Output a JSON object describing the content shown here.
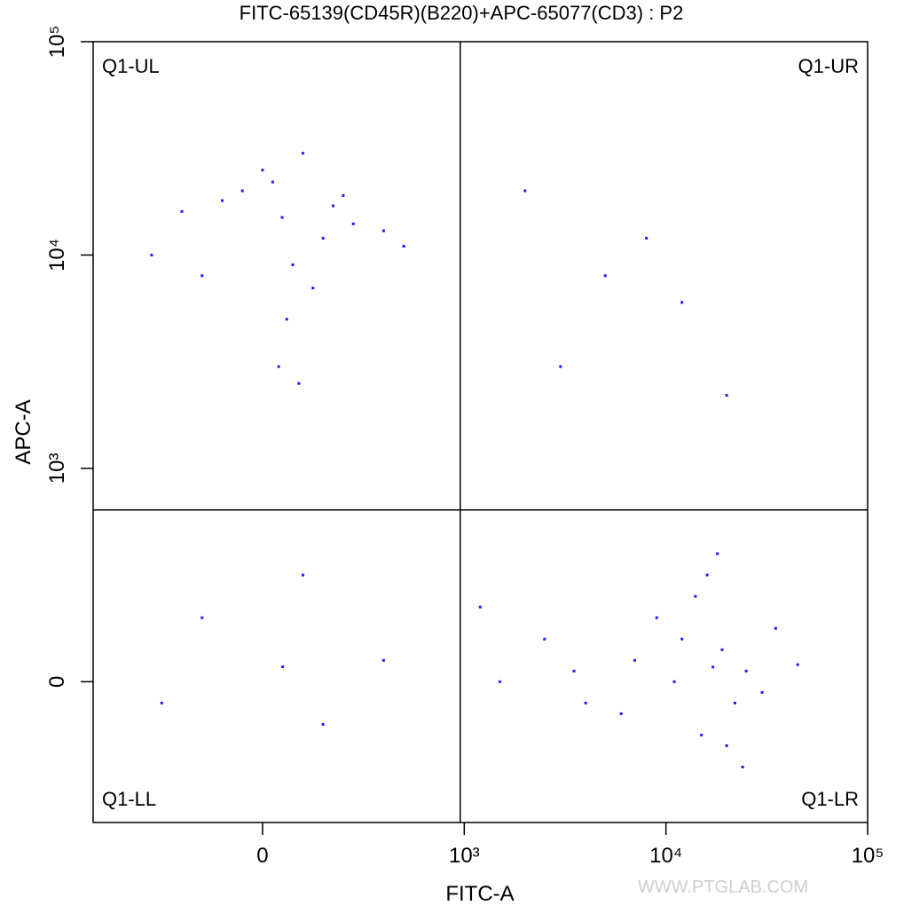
{
  "chart_data": {
    "type": "scatter",
    "title": "FITC-65139(CD45R)(B220)+APC-65077(CD3) : P2",
    "x_label": "FITC-A",
    "y_label": "APC-A",
    "watermark": "WWW.PTGLAB.COM",
    "x_scale": "biexponential",
    "y_scale": "biexponential",
    "xlim": [
      -840,
      100000
    ],
    "ylim": [
      -660,
      100000
    ],
    "xticks": [
      0,
      {
        "value": 1000,
        "label": "10³"
      },
      {
        "value": 10000,
        "label": "10⁴"
      },
      {
        "value": 100000,
        "label": "10⁵"
      }
    ],
    "yticks": [
      0,
      {
        "value": 1000,
        "label": "10³"
      },
      {
        "value": 10000,
        "label": "10⁴"
      },
      {
        "value": 100000,
        "label": "10⁵"
      }
    ],
    "gate": {
      "x": 980,
      "y": 805
    },
    "quadrants": [
      "Q1-UL",
      "Q1-UR",
      "Q1-LL",
      "Q1-LR"
    ],
    "series": [
      {
        "color": "#1a1aff",
        "x": [
          97,
          -200,
          300,
          50,
          450,
          -400,
          150,
          700,
          0,
          250,
          -100,
          600,
          350,
          -550,
          120,
          200,
          80,
          400,
          -300,
          180,
          17100,
          12000,
          22000,
          9000,
          25000,
          15000,
          19000,
          30000,
          7000,
          14000,
          20000,
          11000,
          35000,
          16000,
          6000,
          24000,
          18000,
          45000,
          100,
          -300,
          300,
          600,
          -500,
          200,
          2000,
          5000,
          12000,
          3000,
          20000,
          8000,
          1500,
          2500,
          4000,
          1200,
          3500
        ],
        "values": [
          15000,
          18000,
          12000,
          22000,
          14000,
          16000,
          9000,
          11000,
          25000,
          7000,
          20000,
          13000,
          17000,
          10000,
          5000,
          30000,
          3000,
          19000,
          8000,
          2500,
          69,
          200,
          -100,
          300,
          50,
          -250,
          150,
          -50,
          100,
          400,
          -300,
          0,
          250,
          500,
          -150,
          -400,
          600,
          80,
          70,
          300,
          -200,
          100,
          -100,
          500,
          20000,
          8000,
          6000,
          3000,
          2200,
          12000,
          0,
          200,
          -100,
          350,
          50
        ]
      }
    ]
  }
}
